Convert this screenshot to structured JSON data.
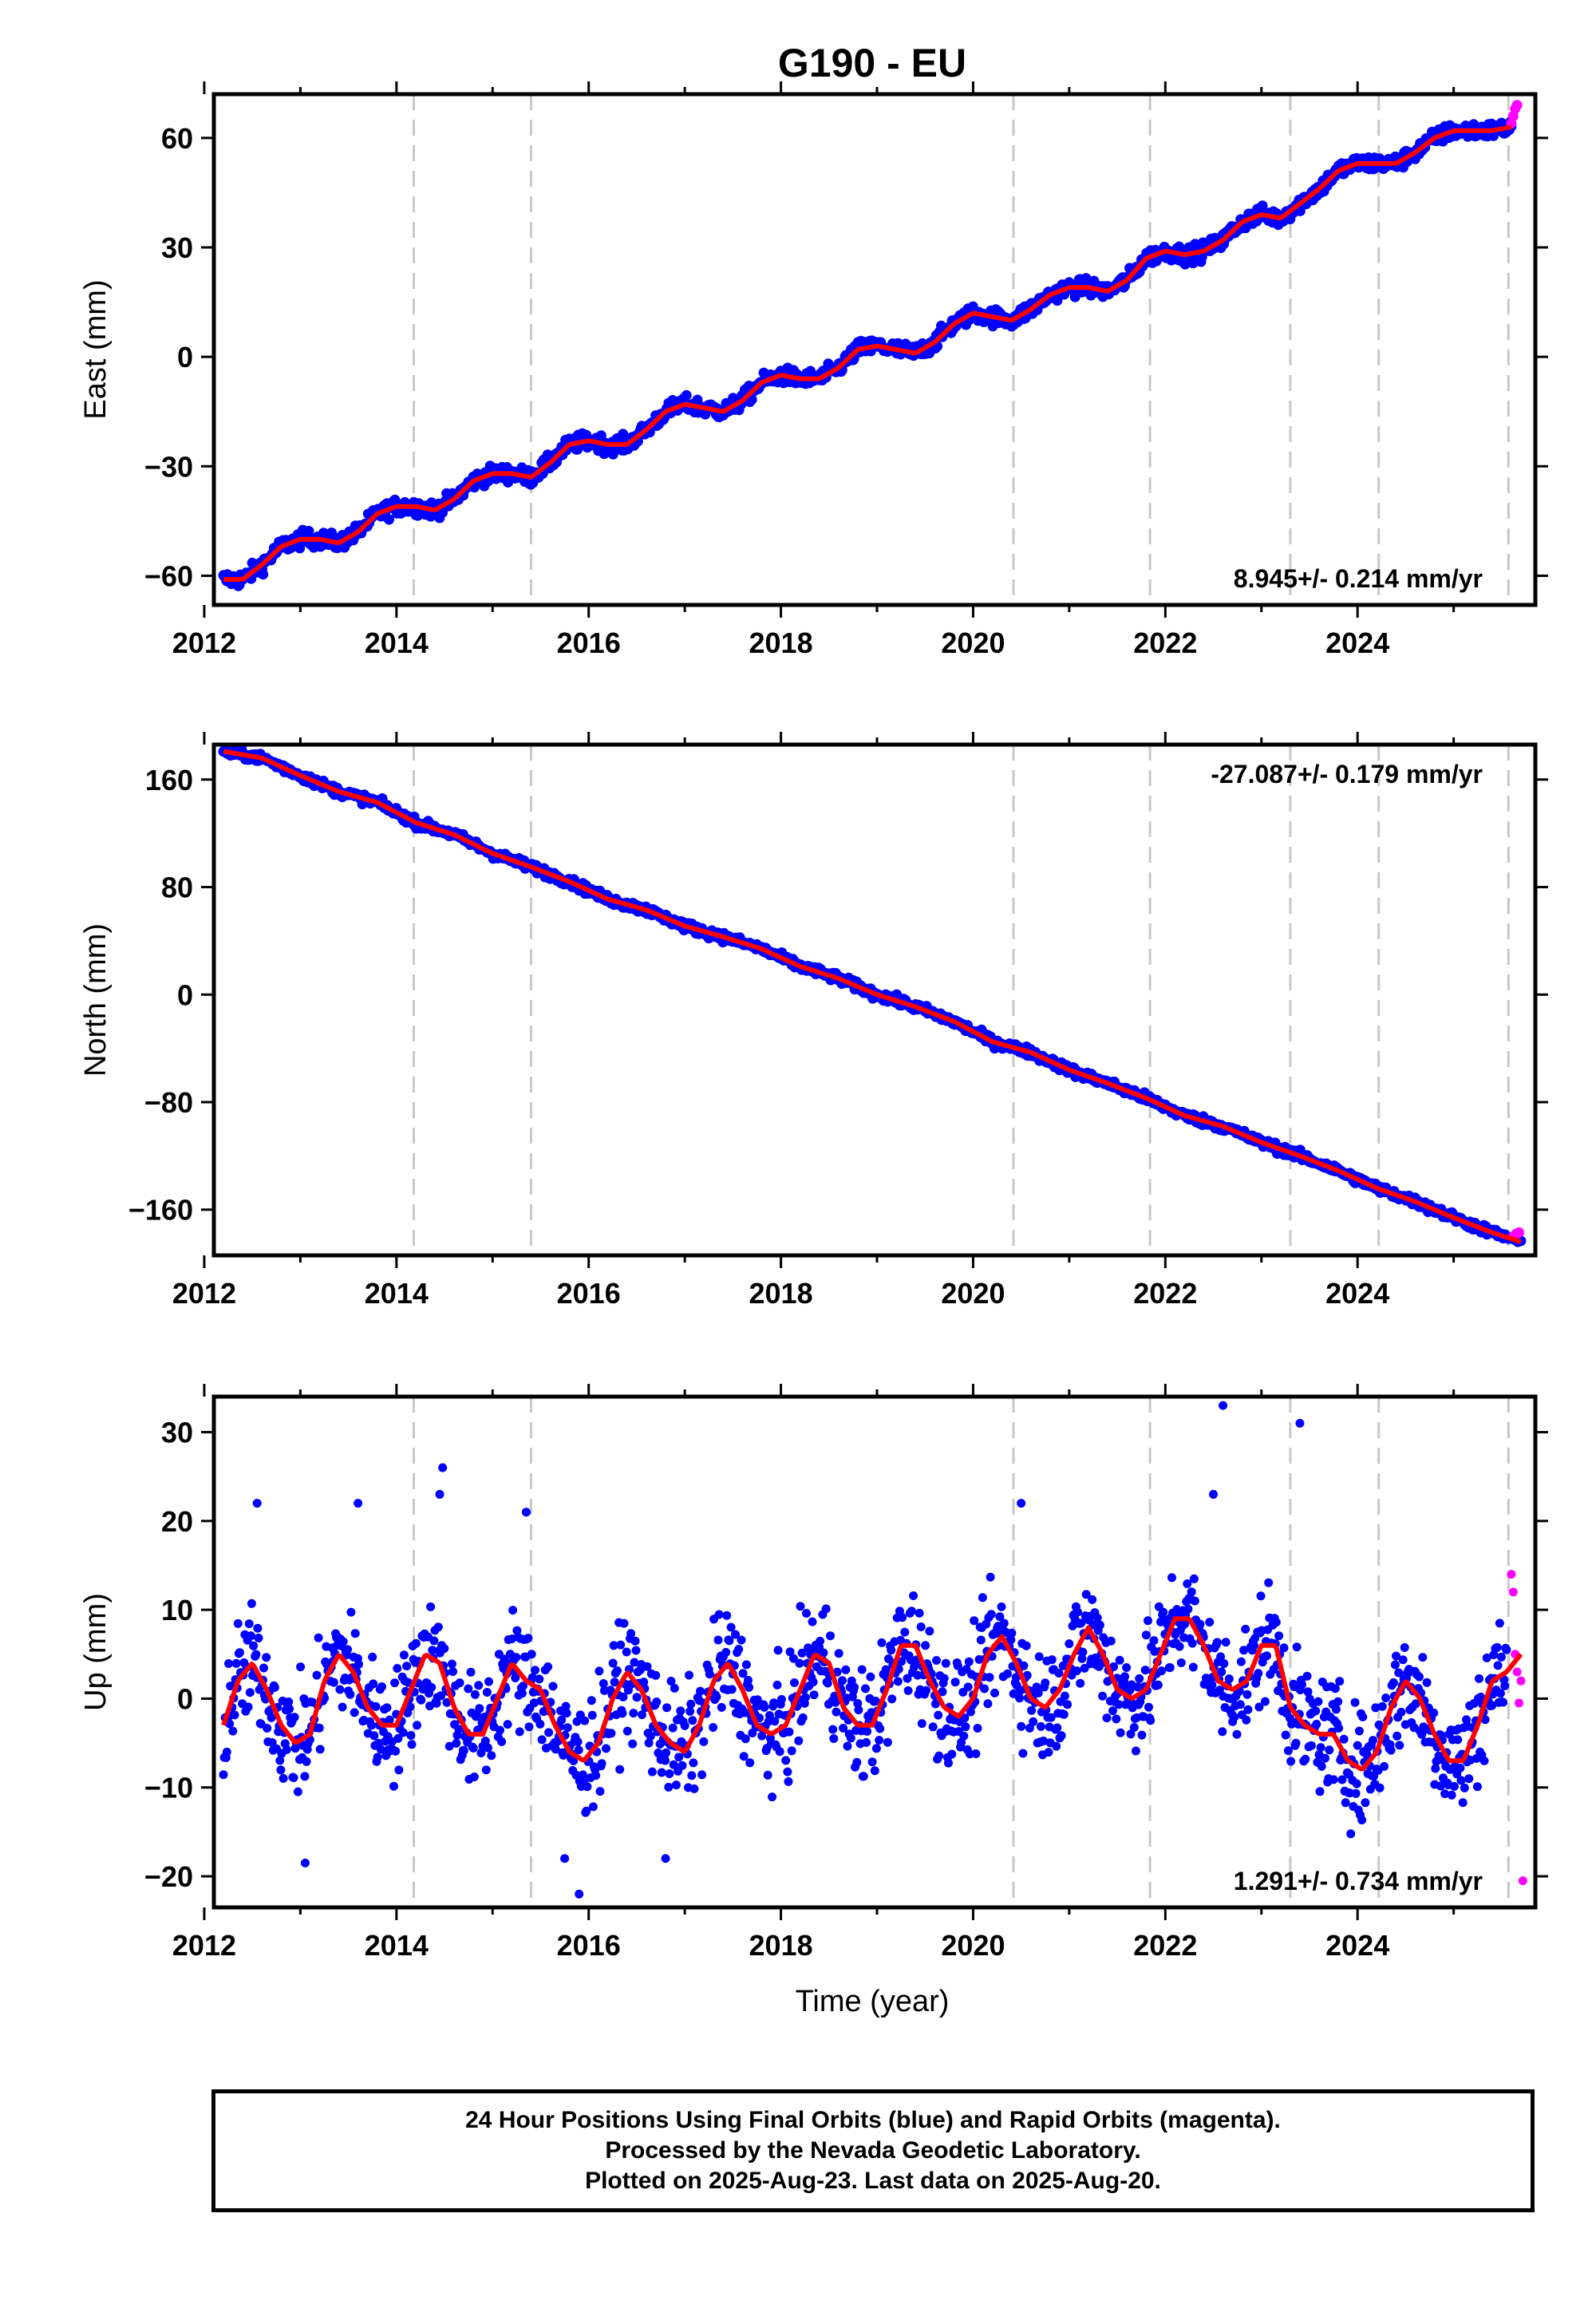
{
  "figure": {
    "title": "G190 - EU",
    "colors": {
      "final": "#0000ff",
      "rapid": "#ff00ff",
      "model": "#ff0000",
      "break": "#c8c8c8"
    }
  },
  "chart_data": [
    {
      "type": "scatter",
      "panel": "east",
      "ylabel": "East (mm)",
      "xlabel": "",
      "xlim": [
        2012.1,
        2025.85
      ],
      "ylim": [
        -68,
        72
      ],
      "xticks": [
        "2012",
        "2014",
        "2016",
        "2018",
        "2020",
        "2022",
        "2024"
      ],
      "yticks": [
        "60",
        "30",
        "0",
        "−30",
        "−60"
      ],
      "ytick_values": [
        60,
        30,
        0,
        -30,
        -60
      ],
      "rate_label": "8.945+/- 0.214 mm/yr",
      "rate_position": "bottom-right",
      "breaks": [
        2014.18,
        2015.4,
        2020.42,
        2021.84,
        2023.3,
        2024.22,
        2025.57
      ],
      "series": [
        {
          "role": "final",
          "x": [
            2012.2,
            2012.4,
            2012.6,
            2012.8,
            2013.0,
            2013.2,
            2013.4,
            2013.6,
            2013.8,
            2014.0,
            2014.2,
            2014.4,
            2014.6,
            2014.8,
            2015.0,
            2015.2,
            2015.4,
            2015.6,
            2015.8,
            2016.0,
            2016.2,
            2016.4,
            2016.6,
            2016.8,
            2017.0,
            2017.2,
            2017.4,
            2017.6,
            2017.8,
            2018.0,
            2018.2,
            2018.4,
            2018.6,
            2018.8,
            2019.0,
            2019.2,
            2019.4,
            2019.6,
            2019.8,
            2020.0,
            2020.2,
            2020.4,
            2020.6,
            2020.8,
            2021.0,
            2021.2,
            2021.4,
            2021.6,
            2021.8,
            2022.0,
            2022.2,
            2022.4,
            2022.6,
            2022.8,
            2023.0,
            2023.2,
            2023.4,
            2023.6,
            2023.8,
            2024.0,
            2024.2,
            2024.4,
            2024.6,
            2024.8,
            2025.0,
            2025.2,
            2025.4,
            2025.6
          ],
          "y": [
            -61,
            -61,
            -57,
            -52,
            -50,
            -50,
            -51,
            -48,
            -43,
            -41,
            -41,
            -42,
            -39,
            -34,
            -32,
            -32,
            -33,
            -29,
            -24,
            -23,
            -24,
            -24,
            -20,
            -15,
            -13,
            -14,
            -15,
            -12,
            -7,
            -5,
            -6,
            -6,
            -3,
            2,
            3,
            2,
            1,
            4,
            9,
            12,
            11,
            10,
            13,
            17,
            19,
            19,
            18,
            21,
            27,
            29,
            28,
            29,
            32,
            37,
            39,
            38,
            42,
            46,
            51,
            53,
            53,
            53,
            56,
            60,
            62,
            62,
            62,
            63
          ],
          "spread": 1.6
        },
        {
          "role": "rapid",
          "x": [
            2025.6,
            2025.62,
            2025.64,
            2025.66
          ],
          "y": [
            64,
            66,
            68,
            69
          ]
        },
        {
          "role": "model",
          "x": [
            2012.2,
            2012.4,
            2012.6,
            2012.8,
            2013.0,
            2013.2,
            2013.4,
            2013.6,
            2013.8,
            2014.0,
            2014.2,
            2014.4,
            2014.6,
            2014.8,
            2015.0,
            2015.2,
            2015.4,
            2015.6,
            2015.8,
            2016.0,
            2016.2,
            2016.4,
            2016.6,
            2016.8,
            2017.0,
            2017.2,
            2017.4,
            2017.6,
            2017.8,
            2018.0,
            2018.2,
            2018.4,
            2018.6,
            2018.8,
            2019.0,
            2019.2,
            2019.4,
            2019.6,
            2019.8,
            2020.0,
            2020.2,
            2020.4,
            2020.6,
            2020.8,
            2021.0,
            2021.2,
            2021.4,
            2021.6,
            2021.8,
            2022.0,
            2022.2,
            2022.4,
            2022.6,
            2022.8,
            2023.0,
            2023.2,
            2023.4,
            2023.6,
            2023.8,
            2024.0,
            2024.2,
            2024.4,
            2024.6,
            2024.8,
            2025.0,
            2025.2,
            2025.4,
            2025.6
          ],
          "y": [
            -61,
            -61,
            -57,
            -52,
            -50,
            -50,
            -51,
            -48,
            -43,
            -41,
            -41,
            -42,
            -39,
            -34,
            -32,
            -32,
            -33,
            -29,
            -24,
            -23,
            -24,
            -24,
            -20,
            -15,
            -13,
            -14,
            -15,
            -12,
            -7,
            -5,
            -6,
            -6,
            -3,
            2,
            3,
            2,
            1,
            4,
            9,
            12,
            11,
            10,
            13,
            17,
            19,
            19,
            18,
            21,
            27,
            29,
            28,
            29,
            32,
            37,
            39,
            38,
            42,
            46,
            51,
            53,
            53,
            53,
            56,
            60,
            62,
            62,
            62,
            63
          ]
        }
      ]
    },
    {
      "type": "scatter",
      "panel": "north",
      "ylabel": "North (mm)",
      "xlabel": "",
      "xlim": [
        2012.1,
        2025.85
      ],
      "ylim": [
        -194,
        186
      ],
      "xticks": [
        "2012",
        "2014",
        "2016",
        "2018",
        "2020",
        "2022",
        "2024"
      ],
      "yticks": [
        "160",
        "80",
        "0",
        "−80",
        "−160"
      ],
      "ytick_values": [
        160,
        80,
        0,
        -80,
        -160
      ],
      "rate_label": "-27.087+/- 0.179 mm/yr",
      "rate_position": "top-right",
      "breaks": [
        2014.18,
        2015.4,
        2020.42,
        2021.84,
        2023.3,
        2024.22,
        2025.57
      ],
      "series": [
        {
          "role": "final",
          "x": [
            2012.2,
            2012.6,
            2013.0,
            2013.4,
            2013.8,
            2014.2,
            2014.6,
            2015.0,
            2015.4,
            2015.8,
            2016.2,
            2016.6,
            2017.0,
            2017.4,
            2017.8,
            2018.2,
            2018.6,
            2019.0,
            2019.4,
            2019.8,
            2020.2,
            2020.6,
            2021.0,
            2021.4,
            2021.8,
            2022.2,
            2022.6,
            2023.0,
            2023.4,
            2023.8,
            2024.2,
            2024.6,
            2025.0,
            2025.4,
            2025.7
          ],
          "y": [
            181,
            176,
            163,
            151,
            143,
            128,
            119,
            105,
            95,
            84,
            71,
            63,
            51,
            43,
            34,
            21,
            12,
            0,
            -9,
            -20,
            -35,
            -43,
            -56,
            -66,
            -77,
            -90,
            -98,
            -110,
            -120,
            -131,
            -144,
            -154,
            -166,
            -177,
            -184
          ],
          "spread": 2.4
        },
        {
          "role": "rapid",
          "x": [
            2025.62,
            2025.65,
            2025.68
          ],
          "y": [
            -180,
            -178,
            -177
          ]
        },
        {
          "role": "model",
          "x": [
            2012.2,
            2012.6,
            2013.0,
            2013.4,
            2013.8,
            2014.2,
            2014.6,
            2015.0,
            2015.4,
            2015.8,
            2016.2,
            2016.6,
            2017.0,
            2017.4,
            2017.8,
            2018.2,
            2018.6,
            2019.0,
            2019.4,
            2019.8,
            2020.2,
            2020.6,
            2021.0,
            2021.4,
            2021.8,
            2022.2,
            2022.6,
            2023.0,
            2023.4,
            2023.8,
            2024.2,
            2024.6,
            2025.0,
            2025.4,
            2025.7
          ],
          "y": [
            181,
            176,
            163,
            151,
            143,
            128,
            119,
            105,
            95,
            84,
            71,
            63,
            51,
            43,
            34,
            21,
            12,
            0,
            -9,
            -20,
            -35,
            -43,
            -56,
            -66,
            -77,
            -90,
            -98,
            -110,
            -120,
            -131,
            -144,
            -154,
            -166,
            -177,
            -184
          ]
        }
      ]
    },
    {
      "type": "scatter",
      "panel": "up",
      "ylabel": "Up (mm)",
      "xlabel": "Time (year)",
      "xlim": [
        2012.1,
        2025.85
      ],
      "ylim": [
        -23.5,
        34
      ],
      "xticks": [
        "2012",
        "2014",
        "2016",
        "2018",
        "2020",
        "2022",
        "2024"
      ],
      "yticks": [
        "30",
        "20",
        "10",
        "0",
        "−10",
        "−20"
      ],
      "ytick_values": [
        30,
        20,
        10,
        0,
        -10,
        -20
      ],
      "rate_label": "1.291+/- 0.734 mm/yr",
      "rate_position": "bottom-right",
      "breaks": [
        2014.18,
        2015.4,
        2020.42,
        2021.84,
        2023.3,
        2024.22,
        2025.57
      ],
      "series": [
        {
          "role": "final",
          "x": [
            2012.2,
            2012.35,
            2012.5,
            2012.65,
            2012.8,
            2012.95,
            2013.1,
            2013.25,
            2013.4,
            2013.55,
            2013.7,
            2013.85,
            2014.0,
            2014.15,
            2014.3,
            2014.45,
            2014.6,
            2014.75,
            2014.9,
            2015.05,
            2015.2,
            2015.35,
            2015.5,
            2015.65,
            2015.8,
            2015.95,
            2016.1,
            2016.25,
            2016.4,
            2016.55,
            2016.7,
            2016.85,
            2017.0,
            2017.15,
            2017.3,
            2017.45,
            2017.6,
            2017.75,
            2017.9,
            2018.05,
            2018.2,
            2018.35,
            2018.5,
            2018.65,
            2018.8,
            2018.95,
            2019.1,
            2019.25,
            2019.4,
            2019.55,
            2019.7,
            2019.85,
            2020.0,
            2020.15,
            2020.3,
            2020.45,
            2020.6,
            2020.75,
            2020.9,
            2021.05,
            2021.2,
            2021.35,
            2021.5,
            2021.65,
            2021.8,
            2021.95,
            2022.1,
            2022.25,
            2022.4,
            2022.55,
            2022.7,
            2022.85,
            2023.0,
            2023.15,
            2023.3,
            2023.45,
            2023.6,
            2023.75,
            2023.9,
            2024.05,
            2024.2,
            2024.35,
            2024.5,
            2024.65,
            2024.8,
            2024.95,
            2025.1,
            2025.25,
            2025.4,
            2025.55
          ],
          "y": [
            -3,
            2,
            4,
            1,
            -3,
            -5,
            -4,
            2,
            5,
            3,
            -1,
            -3,
            -3,
            1,
            5,
            4,
            -1,
            -4,
            -4,
            0,
            4,
            2,
            1,
            -3,
            -6,
            -7,
            -5,
            0,
            3,
            1,
            -3,
            -5,
            -6,
            -3,
            2,
            4,
            1,
            -3,
            -4,
            -3,
            1,
            5,
            4,
            -1,
            -3,
            -3,
            1,
            6,
            6,
            2,
            -1,
            -2,
            0,
            5,
            7,
            4,
            0,
            -1,
            1,
            5,
            8,
            5,
            1,
            0,
            1,
            5,
            9,
            9,
            6,
            2,
            1,
            2,
            6,
            6,
            -1,
            -3,
            -4,
            -4,
            -7,
            -8,
            -6,
            -1,
            2,
            0,
            -4,
            -7,
            -7,
            -3,
            2,
            3
          ],
          "spread": 4.5
        },
        {
          "role": "rapid",
          "x": [
            2025.6,
            2025.62,
            2025.64,
            2025.66,
            2025.68,
            2025.7,
            2025.72
          ],
          "y": [
            14,
            12,
            5,
            3,
            -0.5,
            2,
            -20.5
          ]
        },
        {
          "role": "model",
          "x": [
            2012.2,
            2012.35,
            2012.5,
            2012.65,
            2012.8,
            2012.95,
            2013.1,
            2013.25,
            2013.4,
            2013.55,
            2013.7,
            2013.85,
            2014.0,
            2014.15,
            2014.3,
            2014.45,
            2014.6,
            2014.75,
            2014.9,
            2015.05,
            2015.2,
            2015.35,
            2015.5,
            2015.65,
            2015.8,
            2015.95,
            2016.1,
            2016.25,
            2016.4,
            2016.55,
            2016.7,
            2016.85,
            2017.0,
            2017.15,
            2017.3,
            2017.45,
            2017.6,
            2017.75,
            2017.9,
            2018.05,
            2018.2,
            2018.35,
            2018.5,
            2018.65,
            2018.8,
            2018.95,
            2019.1,
            2019.25,
            2019.4,
            2019.55,
            2019.7,
            2019.85,
            2020.0,
            2020.15,
            2020.3,
            2020.45,
            2020.6,
            2020.75,
            2020.9,
            2021.05,
            2021.2,
            2021.35,
            2021.5,
            2021.65,
            2021.8,
            2021.95,
            2022.1,
            2022.25,
            2022.4,
            2022.55,
            2022.7,
            2022.85,
            2023.0,
            2023.15,
            2023.3,
            2023.45,
            2023.6,
            2023.75,
            2023.9,
            2024.05,
            2024.2,
            2024.35,
            2024.5,
            2024.65,
            2024.8,
            2024.95,
            2025.1,
            2025.25,
            2025.4,
            2025.55,
            2025.7
          ],
          "y": [
            -3,
            2,
            4,
            1,
            -3,
            -5,
            -4,
            2,
            5,
            3,
            -1,
            -3,
            -3,
            1,
            5,
            4,
            -1,
            -4,
            -4,
            0,
            4,
            2,
            1,
            -3,
            -6,
            -7,
            -5,
            0,
            3,
            1,
            -3,
            -5,
            -6,
            -3,
            2,
            4,
            1,
            -3,
            -4,
            -3,
            1,
            5,
            4,
            -1,
            -3,
            -3,
            1,
            6,
            6,
            2,
            -1,
            -2,
            0,
            5,
            7,
            4,
            0,
            -1,
            1,
            5,
            8,
            5,
            1,
            0,
            1,
            5,
            9,
            9,
            6,
            2,
            1,
            2,
            6,
            6,
            -1,
            -3,
            -4,
            -4,
            -7,
            -8,
            -6,
            -1,
            2,
            0,
            -4,
            -7,
            -7,
            -3,
            2,
            3,
            5
          ]
        },
        {
          "role": "outlier",
          "x": [
            2012.55,
            2013.6,
            2014.45,
            2014.48,
            2015.35,
            2015.75,
            2015.9,
            2016.8,
            2020.5,
            2022.6,
            2022.5,
            2023.4,
            2013.05
          ],
          "y": [
            22,
            22,
            23,
            26,
            21,
            -18,
            -22,
            -18,
            22,
            33,
            23,
            31,
            -18.5
          ]
        }
      ]
    }
  ],
  "footer": {
    "line1": "24 Hour Positions Using Final Orbits (blue) and Rapid Orbits (magenta).",
    "line2": "Processed by the Nevada Geodetic Laboratory.",
    "line3": "Plotted on 2025-Aug-23. Last data on 2025-Aug-20."
  }
}
